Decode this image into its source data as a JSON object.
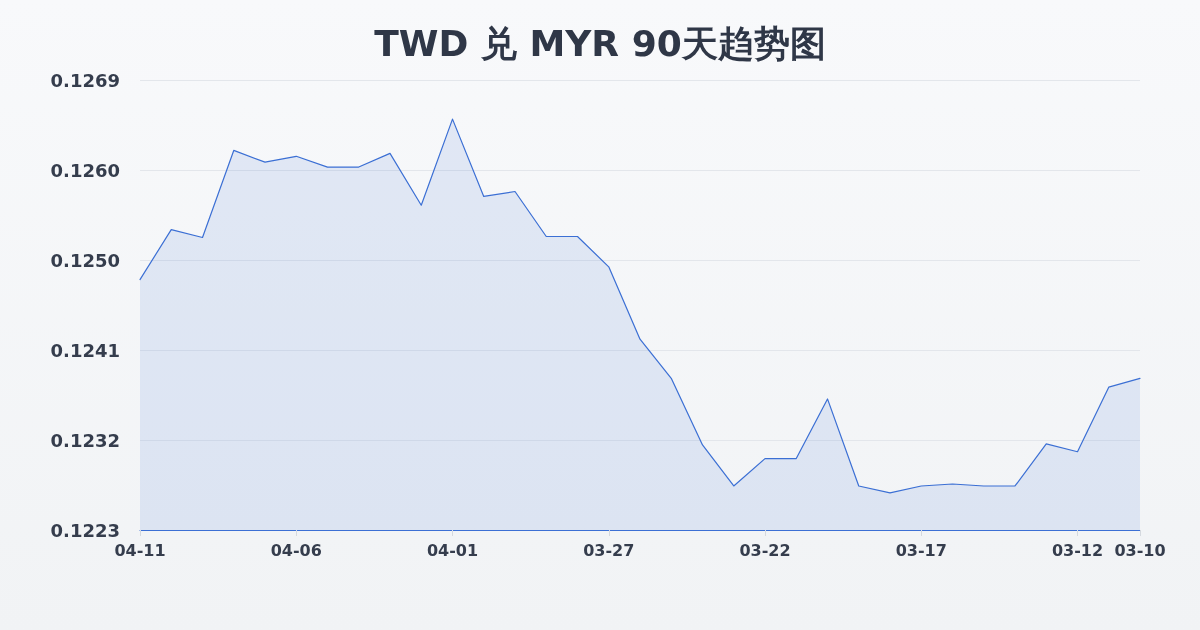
{
  "chart_data": {
    "type": "area",
    "title": "TWD 兑 MYR 90天趋势图",
    "categories": [
      "04-11",
      null,
      null,
      null,
      null,
      "04-06",
      null,
      null,
      null,
      null,
      "04-01",
      null,
      null,
      null,
      null,
      "03-27",
      null,
      null,
      null,
      null,
      "03-22",
      null,
      null,
      null,
      null,
      "03-17",
      null,
      null,
      null,
      null,
      "03-12",
      null,
      "03-10"
    ],
    "series": [
      {
        "color": "#3b6fd4",
        "values": [
          0.12484,
          0.12535,
          0.12527,
          0.12616,
          0.12604,
          0.1261,
          0.12599,
          0.12599,
          0.12613,
          0.1256,
          0.12648,
          0.12569,
          0.12574,
          0.12528,
          0.12528,
          0.12497,
          0.12423,
          0.12383,
          0.12315,
          0.12273,
          0.12301,
          0.12301,
          0.12362,
          0.12273,
          0.12266,
          0.12273,
          0.12275,
          0.12273,
          0.12273,
          0.12316,
          0.12308,
          0.12374,
          0.12383
        ]
      }
    ],
    "ylim": [
      0.12228,
      0.12688
    ],
    "yticks": [
      {
        "value": 0.12228,
        "label": "0.1223"
      },
      {
        "value": 0.1232,
        "label": "0.1232"
      },
      {
        "value": 0.12412,
        "label": "0.1241"
      },
      {
        "value": 0.12504,
        "label": "0.1250"
      },
      {
        "value": 0.12596,
        "label": "0.1260"
      },
      {
        "value": 0.12688,
        "label": "0.1269"
      }
    ],
    "grid": "y"
  }
}
